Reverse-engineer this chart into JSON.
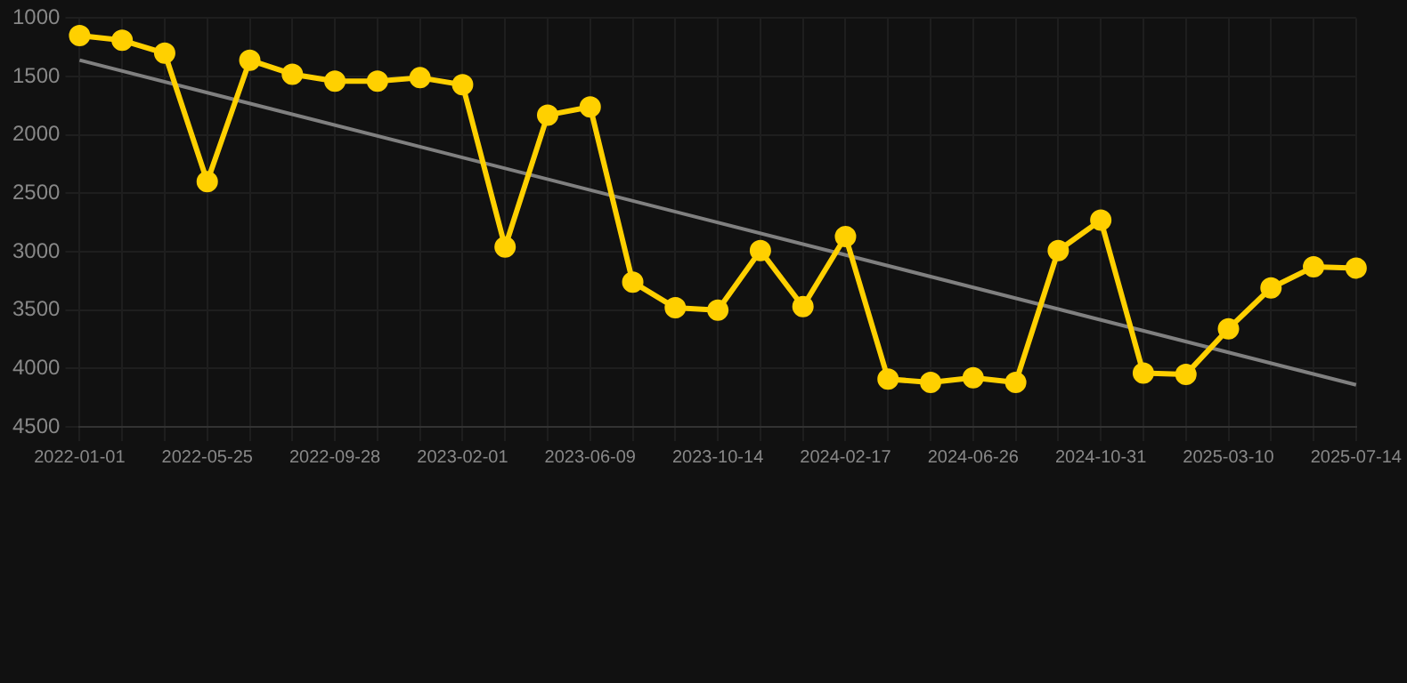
{
  "chart_data": {
    "type": "line",
    "categories": [
      "2022-01-01",
      null,
      null,
      "2022-05-25",
      null,
      null,
      "2022-09-28",
      null,
      null,
      "2023-02-01",
      null,
      null,
      "2023-06-09",
      null,
      null,
      "2023-10-14",
      null,
      null,
      "2024-02-17",
      null,
      null,
      "2024-06-26",
      null,
      null,
      "2024-10-31",
      null,
      null,
      "2025-03-10",
      null,
      null,
      "2025-07-14"
    ],
    "series": [
      {
        "color": "#ffd000",
        "marker": "circle",
        "values": [
          1150,
          1190,
          1300,
          2400,
          1360,
          1480,
          1540,
          1540,
          1510,
          1570,
          2960,
          1830,
          1760,
          3260,
          3480,
          3500,
          2990,
          3470,
          2870,
          4090,
          4120,
          4080,
          4120,
          2990,
          2730,
          4040,
          4050,
          3660,
          3310,
          3130,
          3140
        ]
      },
      {
        "color": "#808080",
        "marker": "none",
        "values": [
          1360,
          null,
          null,
          null,
          null,
          null,
          null,
          null,
          null,
          null,
          null,
          null,
          null,
          null,
          null,
          null,
          null,
          null,
          null,
          null,
          null,
          null,
          null,
          null,
          null,
          null,
          null,
          null,
          null,
          null,
          4140
        ]
      }
    ],
    "ylim": [
      4500,
      1000
    ],
    "yticks": [
      1000,
      1500,
      2000,
      2500,
      3000,
      3500,
      4000,
      4500
    ],
    "grid": true
  }
}
